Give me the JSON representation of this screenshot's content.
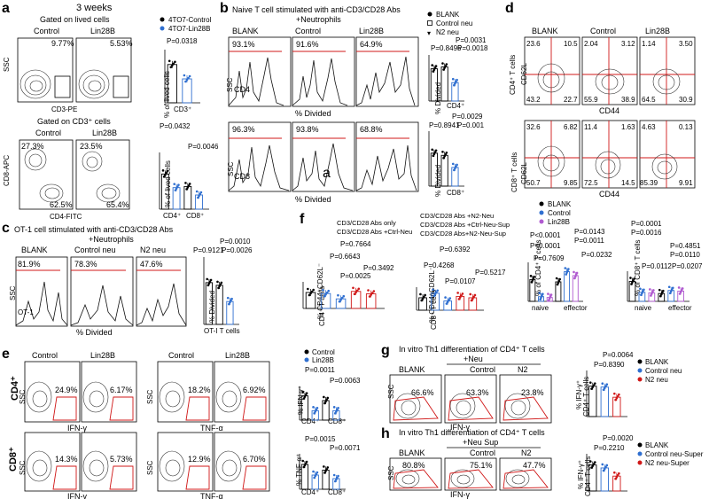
{
  "panel_labels": {
    "a": "a",
    "b": "b",
    "c": "c",
    "d": "d",
    "e": "e",
    "f": "f",
    "g": "g",
    "h": "h"
  },
  "a": {
    "duration": "3 weeks",
    "gate1_title": "Gated on lived cells",
    "gate2_title": "Gated on CD3⁺ cells",
    "conds": [
      "Control",
      "Lin28B"
    ],
    "top_pcts": [
      "9.77%",
      "5.53%"
    ],
    "top_y_axis": "SSC",
    "top_x_axis": "CD3-PE",
    "bot_pcts_upper": [
      "27.3%",
      "23.5%"
    ],
    "bot_pcts_lower": [
      "62.5%",
      "65.4%"
    ],
    "bot_y_axis": "CD8-APC",
    "bot_x_axis": "CD4-FITC",
    "legend": [
      "4TO7-Control",
      "4TO7-Lin28B"
    ],
    "bar1_p": "P=0.0318",
    "bar1_ylabel": "% of lived cells",
    "bar1_cat": "CD3⁺",
    "bar2_p1": "P=0.0432",
    "bar2_p2": "P=0.0046",
    "bar2_ylabel": "% of lived cells",
    "bar2_cats": [
      "CD4⁺",
      "CD8⁺"
    ]
  },
  "b": {
    "title": "Naive T cell stimulated with anti-CD3/CD28 Abs",
    "subtitle": "+Neutrophils",
    "conds": [
      "BLANK",
      "Control",
      "Lin28B"
    ],
    "cd4_pcts": [
      "93.1%",
      "91.6%",
      "64.9%"
    ],
    "cd8_pcts": [
      "96.3%",
      "93.8%",
      "68.8%"
    ],
    "cd4_label": "CD4",
    "cd8_label": "CD8",
    "y_axis": "SSC",
    "x_axis": "% Divided",
    "inset_letter": "a",
    "legend": [
      "BLANK",
      "Control neu",
      "N2 neu"
    ],
    "cd4_p_top": "P=0.0031",
    "cd4_p_a": "P=0.8496",
    "cd4_p_b": "P=0.0018",
    "cd8_p_top": "P=0.0029",
    "cd8_p_a": "P=0.8941",
    "cd8_p_b": "P=0.001",
    "bar_ylabel": "% Divided",
    "cd4_cat": "CD4⁺",
    "cd8_cat": "CD8⁺"
  },
  "c": {
    "title": "OT-1 cell stimulated with anti-CD3/CD28 Abs",
    "subtitle": "+Neutrophils",
    "conds": [
      "BLANK",
      "Control neu",
      "N2 neu"
    ],
    "pcts": [
      "81.9%",
      "78.3%",
      "47.6%"
    ],
    "inner_label": "OT-1",
    "y_axis": "SSC",
    "x_axis": "% Divided",
    "p_top": "P=0.0010",
    "p_a": "P=0.9121",
    "p_b": "P=0.0026",
    "bar_ylabel": "% Divided",
    "bar_cat": "OT-I T cells"
  },
  "d": {
    "conds": [
      "BLANK",
      "Control",
      "Lin28B"
    ],
    "cd4_quads": [
      [
        "23.6",
        "10.5",
        "43.2",
        "22.7"
      ],
      [
        "2.04",
        "3.12",
        "55.9",
        "38.9"
      ],
      [
        "1.14",
        "3.50",
        "64.5",
        "30.9"
      ]
    ],
    "cd8_quads": [
      [
        "32.6",
        "6.82",
        "50.7",
        "9.85"
      ],
      [
        "11.4",
        "1.63",
        "72.5",
        "14.5"
      ],
      [
        "4.63",
        "0.13",
        "85.39",
        "9.91"
      ]
    ],
    "cd4_row_label": "CD4⁺ T cells",
    "cd8_row_label": "CD8⁺ T cells",
    "y_axis": "CD62L",
    "x_axis": "CD44",
    "legend": [
      "BLANK",
      "Control",
      "Lin28B"
    ],
    "cd4_p": [
      "P<0.0001",
      "P<0.0001",
      "P=0.7609",
      "P=0.0143",
      "P=0.0011",
      "P=0.0232"
    ],
    "cd4_ylabel": "% of CD4⁺ T cells",
    "cd8_p": [
      "P=0.0001",
      "P=0.0016",
      "P=0.4851",
      "P=0.0110",
      "P=0.0112",
      "P=0.0207"
    ],
    "cd8_ylabel": "% of CD8⁺ T cells",
    "cats": [
      "naive",
      "effector"
    ]
  },
  "e": {
    "conds": [
      "Control",
      "Lin28B"
    ],
    "cd4_ifn": [
      "24.9%",
      "6.17%"
    ],
    "cd4_tnf": [
      "18.2%",
      "6.92%"
    ],
    "cd8_ifn": [
      "14.3%",
      "5.73%"
    ],
    "cd8_tnf": [
      "12.9%",
      "6.70%"
    ],
    "row_labels": [
      "CD4⁺",
      "CD8⁺"
    ],
    "y_axis": "SSC",
    "x_ifn": "IFN-γ",
    "x_tnf": "TNF-α",
    "legend": [
      "Control",
      "Lin28B"
    ],
    "ifn_p": [
      "P=0.0011",
      "P=0.0063"
    ],
    "ifn_ylabel": "% IFN-γ⁺",
    "tnf_p": [
      "P=0.0015",
      "P=0.0071"
    ],
    "tnf_ylabel": "% TNF-α⁺",
    "cats": [
      "CD4⁺",
      "CD8⁺"
    ]
  },
  "f": {
    "legend_left": [
      "CD3/CD28 Abs only",
      "CD3/CD28 Abs +Ctrl-Neu"
    ],
    "legend_right": [
      "CD3/CD28 Abs +N2-Neu",
      "CD3/CD28 Abs +Ctrl-Neu-Sup",
      "CD3/CD28 Abs+N2-Neu-Sup"
    ],
    "cd4_p": [
      "P=0.7664",
      "P=0.6643",
      "P=0.3492",
      "P=0.0025"
    ],
    "cd4_ylabel1": "% CD44⁺CD62L⁻",
    "cd4_ylabel2": "CD4⁺ T cells",
    "cd8_p": [
      "P=0.6392",
      "P=0.4268",
      "P=0.0107",
      "P=0.5217"
    ],
    "cd8_ylabel1": "% CD44⁺CD62L⁻",
    "cd8_ylabel2": "CD8⁺ T cells"
  },
  "g": {
    "title": "In vitro Th1 differentiation of CD4⁺ T cells",
    "subtitle": "+Neu",
    "conds": [
      "BLANK",
      "Control",
      "N2"
    ],
    "pcts": [
      "66.6%",
      "63.3%",
      "23.8%"
    ],
    "y_axis": "SSC",
    "x_axis": "IFN-γ",
    "legend": [
      "BLANK",
      "Control neu",
      "N2 neu"
    ],
    "p": [
      "P=0.0064",
      "P=0.8390"
    ],
    "ylabel1": "% IFN-γ⁺",
    "ylabel2": "CD4⁺ T cells"
  },
  "h": {
    "title": "In vitro Th1 differentiation of CD4⁺ T cells",
    "subtitle": "+Neu Sup",
    "conds": [
      "BLANK",
      "Control",
      "N2"
    ],
    "pcts": [
      "80.8%",
      "75.1%",
      "47.7%"
    ],
    "y_axis": "SSC",
    "x_axis": "IFN-γ",
    "legend": [
      "BLANK",
      "Control neu-Super",
      "N2 neu-Super"
    ],
    "p": [
      "P=0.0020",
      "P=0.2210"
    ],
    "ylabel1": "% IFN-γ⁺",
    "ylabel2": "CD4⁺ T cells"
  },
  "colors": {
    "red": "#d01818",
    "blue": "#2f6fd0",
    "purple": "#b05ad0",
    "black": "#000000"
  }
}
